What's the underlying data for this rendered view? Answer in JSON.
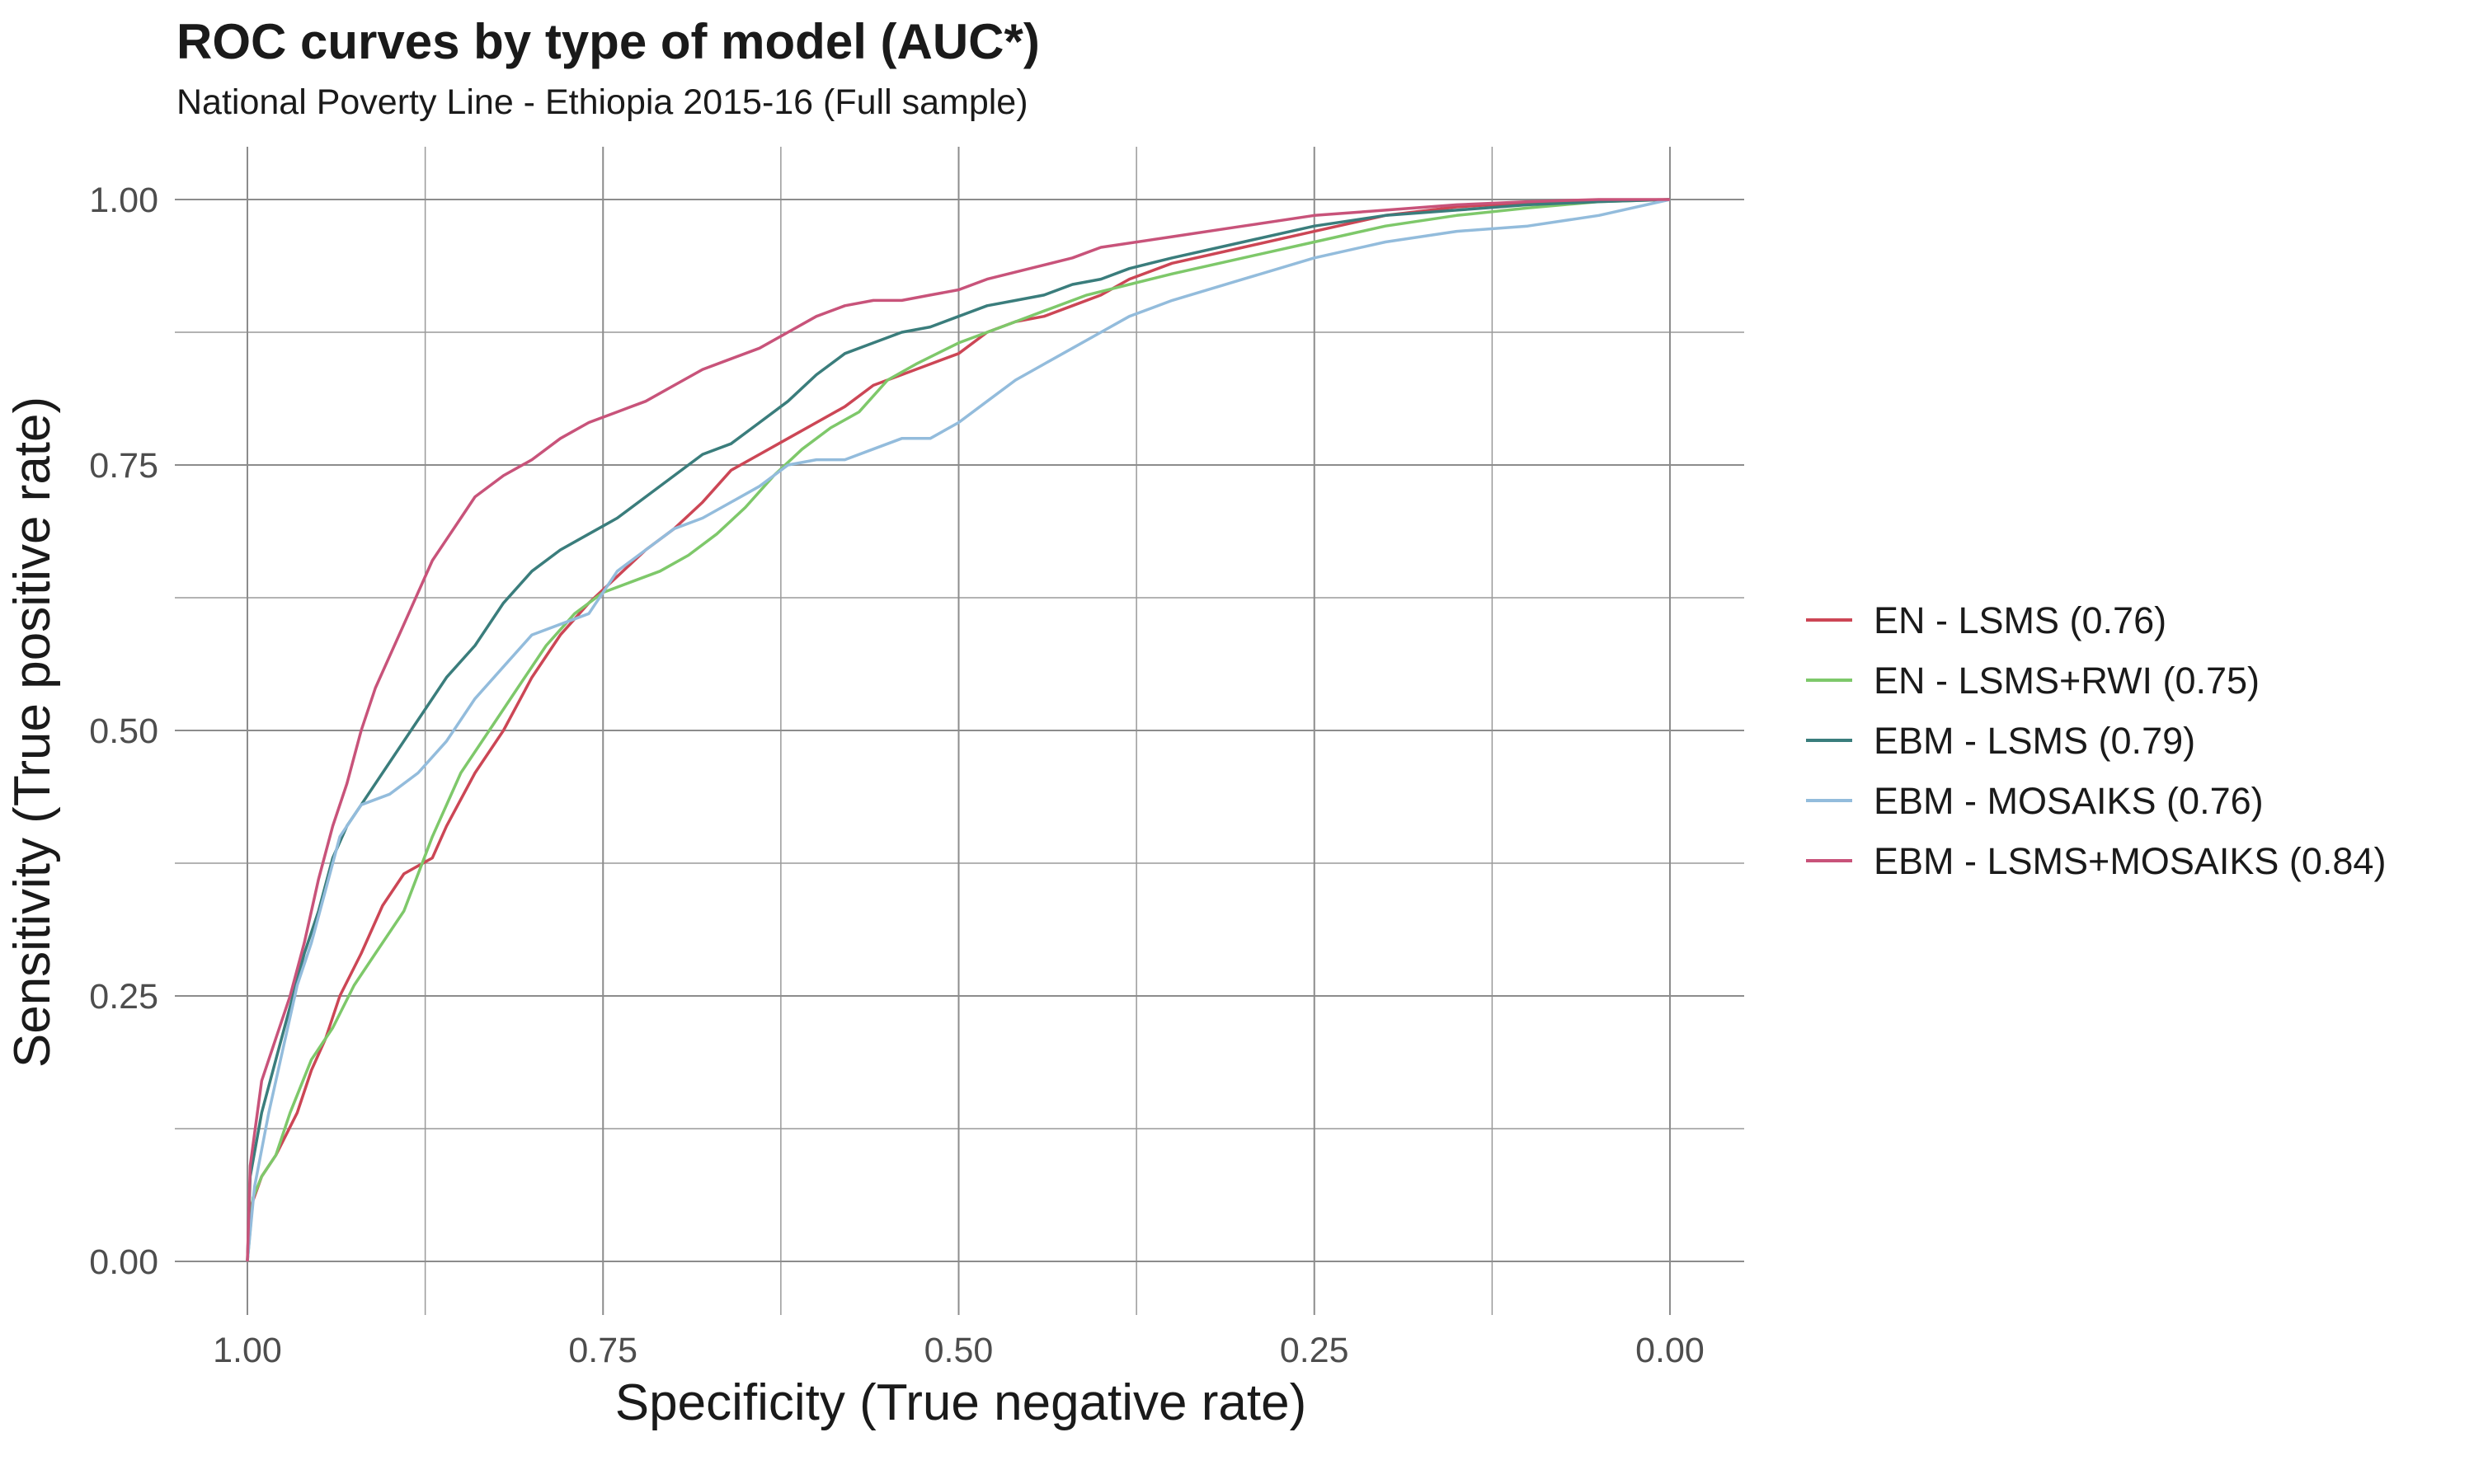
{
  "chart_data": {
    "type": "line",
    "title": "ROC curves by type of model (AUC*)",
    "subtitle": "National Poverty Line - Ethiopia 2015-16 (Full sample)",
    "xlabel": "Specificity (True negative rate)",
    "ylabel": "Sensitivity (True positive rate)",
    "xlim": [
      1.0,
      0.0
    ],
    "ylim": [
      0.0,
      1.0
    ],
    "x_reversed": true,
    "x_ticks": [
      "1.00",
      "0.75",
      "0.50",
      "0.25",
      "0.00"
    ],
    "y_ticks": [
      "0.00",
      "0.25",
      "0.50",
      "0.75",
      "1.00"
    ],
    "grid": true,
    "legend_position": "right",
    "series": [
      {
        "name": "EN - LSMS (0.76)",
        "color": "#cc4655",
        "x": [
          1.0,
          0.998,
          0.99,
          0.98,
          0.965,
          0.955,
          0.945,
          0.935,
          0.92,
          0.905,
          0.89,
          0.87,
          0.86,
          0.84,
          0.82,
          0.8,
          0.78,
          0.76,
          0.74,
          0.72,
          0.7,
          0.68,
          0.66,
          0.64,
          0.62,
          0.6,
          0.58,
          0.56,
          0.54,
          0.52,
          0.5,
          0.48,
          0.46,
          0.44,
          0.42,
          0.4,
          0.38,
          0.35,
          0.3,
          0.25,
          0.2,
          0.15,
          0.1,
          0.05,
          0.0
        ],
        "y": [
          0.0,
          0.05,
          0.08,
          0.1,
          0.14,
          0.18,
          0.21,
          0.25,
          0.29,
          0.335,
          0.365,
          0.38,
          0.41,
          0.46,
          0.5,
          0.55,
          0.59,
          0.62,
          0.645,
          0.67,
          0.69,
          0.715,
          0.745,
          0.76,
          0.775,
          0.79,
          0.805,
          0.825,
          0.835,
          0.845,
          0.855,
          0.875,
          0.885,
          0.89,
          0.9,
          0.91,
          0.925,
          0.94,
          0.955,
          0.97,
          0.985,
          0.993,
          0.997,
          0.999,
          1.0
        ]
      },
      {
        "name": "EN - LSMS+RWI (0.75)",
        "color": "#7ec86a",
        "x": [
          1.0,
          0.996,
          0.99,
          0.98,
          0.97,
          0.955,
          0.94,
          0.925,
          0.91,
          0.89,
          0.87,
          0.85,
          0.83,
          0.81,
          0.79,
          0.77,
          0.75,
          0.73,
          0.71,
          0.69,
          0.67,
          0.65,
          0.63,
          0.61,
          0.59,
          0.57,
          0.55,
          0.53,
          0.5,
          0.47,
          0.44,
          0.41,
          0.38,
          0.35,
          0.3,
          0.25,
          0.2,
          0.15,
          0.1,
          0.05,
          0.0
        ],
        "y": [
          0.0,
          0.06,
          0.08,
          0.1,
          0.14,
          0.19,
          0.22,
          0.26,
          0.29,
          0.33,
          0.4,
          0.46,
          0.5,
          0.54,
          0.58,
          0.61,
          0.63,
          0.64,
          0.65,
          0.665,
          0.685,
          0.71,
          0.74,
          0.765,
          0.785,
          0.8,
          0.83,
          0.845,
          0.865,
          0.88,
          0.895,
          0.91,
          0.92,
          0.93,
          0.945,
          0.96,
          0.975,
          0.985,
          0.992,
          0.998,
          1.0
        ]
      },
      {
        "name": "EBM - LSMS (0.79)",
        "color": "#3a7d7c",
        "x": [
          1.0,
          0.998,
          0.99,
          0.98,
          0.97,
          0.96,
          0.95,
          0.94,
          0.93,
          0.92,
          0.9,
          0.88,
          0.86,
          0.84,
          0.82,
          0.8,
          0.78,
          0.76,
          0.74,
          0.72,
          0.7,
          0.68,
          0.66,
          0.64,
          0.62,
          0.6,
          0.58,
          0.56,
          0.54,
          0.52,
          0.5,
          0.48,
          0.46,
          0.44,
          0.42,
          0.4,
          0.38,
          0.35,
          0.3,
          0.25,
          0.2,
          0.15,
          0.1,
          0.05,
          0.0
        ],
        "y": [
          0.0,
          0.08,
          0.14,
          0.19,
          0.24,
          0.29,
          0.33,
          0.38,
          0.41,
          0.43,
          0.47,
          0.51,
          0.55,
          0.58,
          0.62,
          0.65,
          0.67,
          0.685,
          0.7,
          0.72,
          0.74,
          0.76,
          0.77,
          0.79,
          0.81,
          0.835,
          0.855,
          0.865,
          0.875,
          0.88,
          0.89,
          0.9,
          0.905,
          0.91,
          0.92,
          0.925,
          0.935,
          0.945,
          0.96,
          0.975,
          0.985,
          0.99,
          0.995,
          0.998,
          1.0
        ]
      },
      {
        "name": "EBM - MOSAIKS (0.76)",
        "color": "#93bcdc",
        "x": [
          1.0,
          0.995,
          0.985,
          0.975,
          0.965,
          0.955,
          0.945,
          0.935,
          0.92,
          0.9,
          0.88,
          0.86,
          0.84,
          0.82,
          0.8,
          0.78,
          0.76,
          0.74,
          0.72,
          0.7,
          0.68,
          0.66,
          0.64,
          0.62,
          0.6,
          0.58,
          0.56,
          0.54,
          0.52,
          0.5,
          0.48,
          0.46,
          0.44,
          0.42,
          0.4,
          0.38,
          0.35,
          0.3,
          0.25,
          0.2,
          0.15,
          0.1,
          0.05,
          0.0
        ],
        "y": [
          0.0,
          0.07,
          0.14,
          0.2,
          0.26,
          0.3,
          0.35,
          0.4,
          0.43,
          0.44,
          0.46,
          0.49,
          0.53,
          0.56,
          0.59,
          0.6,
          0.61,
          0.65,
          0.67,
          0.69,
          0.7,
          0.715,
          0.73,
          0.75,
          0.755,
          0.755,
          0.765,
          0.775,
          0.775,
          0.79,
          0.81,
          0.83,
          0.845,
          0.86,
          0.875,
          0.89,
          0.905,
          0.925,
          0.945,
          0.96,
          0.97,
          0.975,
          0.985,
          1.0
        ]
      },
      {
        "name": "EBM - LSMS+MOSAIKS (0.84)",
        "color": "#c8537a",
        "x": [
          1.0,
          0.998,
          0.99,
          0.98,
          0.97,
          0.96,
          0.95,
          0.94,
          0.93,
          0.92,
          0.91,
          0.9,
          0.89,
          0.88,
          0.87,
          0.86,
          0.85,
          0.84,
          0.82,
          0.8,
          0.78,
          0.76,
          0.74,
          0.72,
          0.7,
          0.68,
          0.66,
          0.64,
          0.62,
          0.6,
          0.58,
          0.56,
          0.54,
          0.52,
          0.5,
          0.48,
          0.45,
          0.42,
          0.4,
          0.35,
          0.3,
          0.25,
          0.2,
          0.15,
          0.1,
          0.05,
          0.0
        ],
        "y": [
          0.0,
          0.09,
          0.17,
          0.21,
          0.25,
          0.3,
          0.36,
          0.41,
          0.45,
          0.5,
          0.54,
          0.57,
          0.6,
          0.63,
          0.66,
          0.68,
          0.7,
          0.72,
          0.74,
          0.755,
          0.775,
          0.79,
          0.8,
          0.81,
          0.825,
          0.84,
          0.85,
          0.86,
          0.875,
          0.89,
          0.9,
          0.905,
          0.905,
          0.91,
          0.915,
          0.925,
          0.935,
          0.945,
          0.955,
          0.965,
          0.975,
          0.985,
          0.99,
          0.995,
          0.998,
          1.0,
          1.0
        ]
      }
    ]
  }
}
